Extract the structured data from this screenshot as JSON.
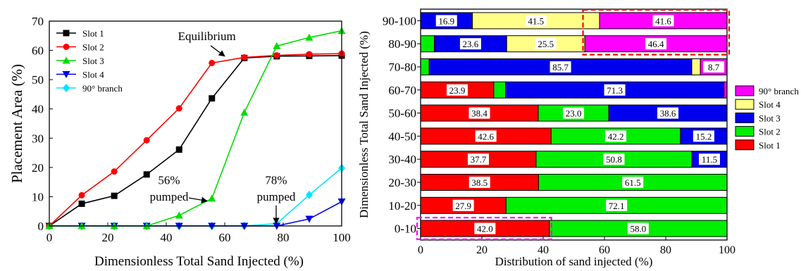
{
  "chart_data": [
    {
      "type": "line",
      "xlabel": "Dimensionless Total Sand Injected (%)",
      "ylabel": "Placement Area (%)",
      "xlim": [
        0,
        100
      ],
      "ylim": [
        0,
        70
      ],
      "xticks": [
        0,
        20,
        40,
        60,
        80,
        100
      ],
      "yticks": [
        0,
        10,
        20,
        30,
        40,
        50,
        60,
        70
      ],
      "grid": false,
      "legend_position": "top-left",
      "x": [
        0,
        11.1,
        22.2,
        33.3,
        44.4,
        55.6,
        66.7,
        77.8,
        88.9,
        100
      ],
      "series": [
        {
          "name": "Slot 1",
          "color": "#000000",
          "marker": "square",
          "values": [
            0,
            7.6,
            10.3,
            17.6,
            26.1,
            43.6,
            57.4,
            58.0,
            58.1,
            58.2
          ]
        },
        {
          "name": "Slot 2",
          "color": "#ff0000",
          "marker": "circle",
          "values": [
            0,
            10.5,
            18.6,
            29.3,
            40.2,
            55.7,
            57.6,
            58.3,
            58.7,
            58.9
          ]
        },
        {
          "name": "Slot 3",
          "color": "#00dd00",
          "marker": "triangle-up",
          "values": [
            0,
            0,
            0,
            0,
            3.6,
            9.4,
            38.8,
            61.5,
            64.4,
            66.7
          ]
        },
        {
          "name": "Slot 4",
          "color": "#0000ee",
          "marker": "triangle-down",
          "values": [
            0,
            0,
            0,
            0,
            0,
            0,
            0,
            0,
            2.4,
            8.3
          ]
        },
        {
          "name": "90° branch",
          "color": "#00e5ff",
          "marker": "diamond",
          "values": [
            0,
            0,
            0,
            0,
            0,
            0,
            0,
            0.8,
            10.6,
            19.8
          ]
        }
      ],
      "annotations": [
        {
          "text": "Equilibrium",
          "x": 44,
          "y": 63.5,
          "arrow_to": [
            60,
            58
          ]
        },
        {
          "lines": [
            "56%",
            "pumped"
          ],
          "x": 44,
          "y": 11,
          "arrow_to": [
            54,
            8.5
          ]
        },
        {
          "lines": [
            "78%",
            "pumped"
          ],
          "x": 74,
          "y": 11,
          "arrow_to": [
            74,
            0.8
          ]
        }
      ]
    },
    {
      "type": "bar",
      "orientation": "horizontal",
      "stacked": true,
      "xlabel": "Distribution of sand injected (%)",
      "ylabel": "Dimensionless Total Sand Injected (%)",
      "xlim": [
        0,
        100
      ],
      "xticks": [
        0,
        20,
        40,
        60,
        80,
        100
      ],
      "categories": [
        "0-10",
        "10-20",
        "20-30",
        "30-40",
        "40-50",
        "50-60",
        "60-70",
        "70-80",
        "80-90",
        "90-100"
      ],
      "legend_position": "right",
      "legend_order": [
        "90° branch",
        "Slot 4",
        "Slot 3",
        "Slot 2",
        "Slot 1"
      ],
      "series": [
        {
          "name": "Slot 1",
          "color": "#ff0000",
          "values": [
            42.0,
            27.9,
            38.5,
            37.7,
            42.6,
            38.4,
            23.9,
            0,
            0,
            0
          ],
          "labels": [
            "42.0",
            "27.9",
            "38.5",
            "37.7",
            "42.6",
            "38.4",
            "23.9",
            "",
            "",
            ""
          ]
        },
        {
          "name": "Slot 2",
          "color": "#00ee00",
          "values": [
            58.0,
            72.1,
            61.5,
            50.8,
            42.2,
            23.0,
            3.8,
            2.8,
            4.5,
            0
          ],
          "labels": [
            "58.0",
            "72.1",
            "61.5",
            "50.8",
            "42.2",
            "23.0",
            "",
            "",
            "",
            ""
          ]
        },
        {
          "name": "Slot 3",
          "color": "#0000ee",
          "values": [
            0,
            0,
            0,
            11.5,
            15.2,
            38.6,
            71.3,
            85.7,
            23.6,
            16.9
          ],
          "labels": [
            "",
            "",
            "",
            "11.5",
            "15.2",
            "38.6",
            "71.3",
            "85.7",
            "23.6",
            "16.9"
          ]
        },
        {
          "name": "Slot 4",
          "color": "#ffff88",
          "values": [
            0,
            0,
            0,
            0,
            0,
            0,
            0,
            2.8,
            25.5,
            41.5
          ],
          "labels": [
            "",
            "",
            "",
            "",
            "",
            "",
            "",
            "",
            "25.5",
            "41.5"
          ]
        },
        {
          "name": "90° branch",
          "color": "#ff00ff",
          "values": [
            0,
            0,
            0,
            0,
            0,
            0,
            1.0,
            8.7,
            46.4,
            41.6
          ],
          "labels": [
            "",
            "",
            "",
            "",
            "",
            "",
            "",
            "8.7",
            "46.4",
            "41.6"
          ]
        }
      ],
      "highlights": [
        {
          "color": "#ff0000",
          "style": "dashed",
          "categories": [
            "80-90",
            "90-100"
          ],
          "x_range": [
            53,
            100
          ]
        },
        {
          "color": "#ff00ff",
          "style": "dashed",
          "categories": [
            "0-10"
          ],
          "x_range": [
            0,
            42
          ]
        }
      ]
    }
  ]
}
